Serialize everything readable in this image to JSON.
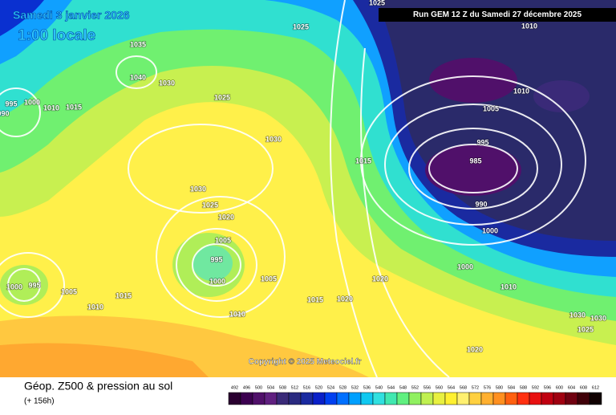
{
  "header": {
    "date": "Samedi 3 janvier 2026",
    "time": "1:00 locale",
    "run": "Run GEM 12 Z du Samedi 27 décembre 2025"
  },
  "copyright": "Copyright © 2025 Meteociel.fr",
  "footer": {
    "title": "Géop. Z500 & pression au sol",
    "lead": "(+ 156h)"
  },
  "isobar_labels": [
    "1025",
    "1025",
    "1010",
    "1035",
    "1040",
    "1030",
    "995",
    "1000",
    "1010",
    "1015",
    "990",
    "1025",
    "1010",
    "1005",
    "1030",
    "1015",
    "995",
    "985",
    "990",
    "1030",
    "1025",
    "1020",
    "1000",
    "1005",
    "995",
    "1000",
    "1005",
    "1000",
    "1020",
    "1000",
    "995",
    "1005",
    "1015",
    "1010",
    "1015",
    "1020",
    "1010",
    "1010",
    "1030",
    "1030",
    "1025",
    "1020"
  ],
  "legend": {
    "values": [
      492,
      496,
      500,
      504,
      508,
      512,
      516,
      520,
      524,
      528,
      532,
      536,
      540,
      544,
      548,
      552,
      556,
      560,
      564,
      568,
      572,
      576,
      580,
      584,
      588,
      592,
      596,
      600,
      604,
      608,
      612
    ],
    "colors": [
      "#2a0030",
      "#3c0050",
      "#50106a",
      "#602080",
      "#3a2a78",
      "#2a2a80",
      "#1a2aa0",
      "#0a20c8",
      "#0040f0",
      "#0070ff",
      "#00a0ff",
      "#10c8f0",
      "#30e0e0",
      "#40e8b0",
      "#60f080",
      "#90f060",
      "#c0f050",
      "#e8f040",
      "#fff030",
      "#fff070",
      "#ffd040",
      "#ffb030",
      "#ff9020",
      "#ff6010",
      "#ff3010",
      "#e81010",
      "#c00010",
      "#a00010",
      "#700010",
      "#400008",
      "#100000"
    ]
  }
}
